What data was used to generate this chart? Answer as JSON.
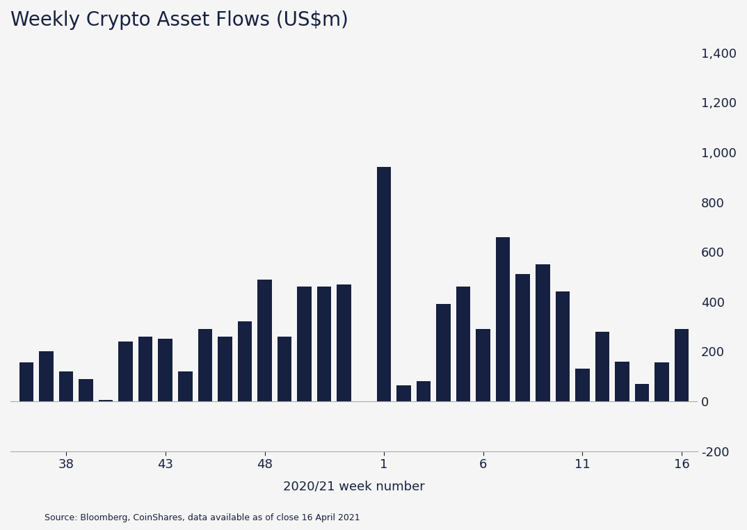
{
  "title": "Weekly Crypto Asset Flows (US$m)",
  "xlabel": "2020/21 week number",
  "source": "Source: Bloomberg, CoinShares, data available as of close 16 April 2021",
  "bar_color": "#162040",
  "background_color": "#f5f5f5",
  "ylim": [
    -200,
    1450
  ],
  "yticks": [
    -200,
    0,
    200,
    400,
    600,
    800,
    1000,
    1200,
    1400
  ],
  "weeks": [
    36,
    37,
    38,
    39,
    40,
    41,
    42,
    43,
    44,
    45,
    46,
    47,
    48,
    49,
    50,
    51,
    52,
    1,
    2,
    3,
    4,
    5,
    6,
    7,
    8,
    9,
    10,
    11,
    12,
    13,
    14,
    15,
    16
  ],
  "values": [
    155,
    200,
    120,
    90,
    5,
    240,
    260,
    250,
    120,
    290,
    260,
    320,
    490,
    260,
    460,
    460,
    470,
    940,
    65,
    80,
    390,
    460,
    290,
    660,
    510,
    550,
    440,
    130,
    280,
    160,
    70,
    155,
    290
  ],
  "xtick_positions": [
    38,
    43,
    48,
    1,
    6,
    11,
    16
  ]
}
